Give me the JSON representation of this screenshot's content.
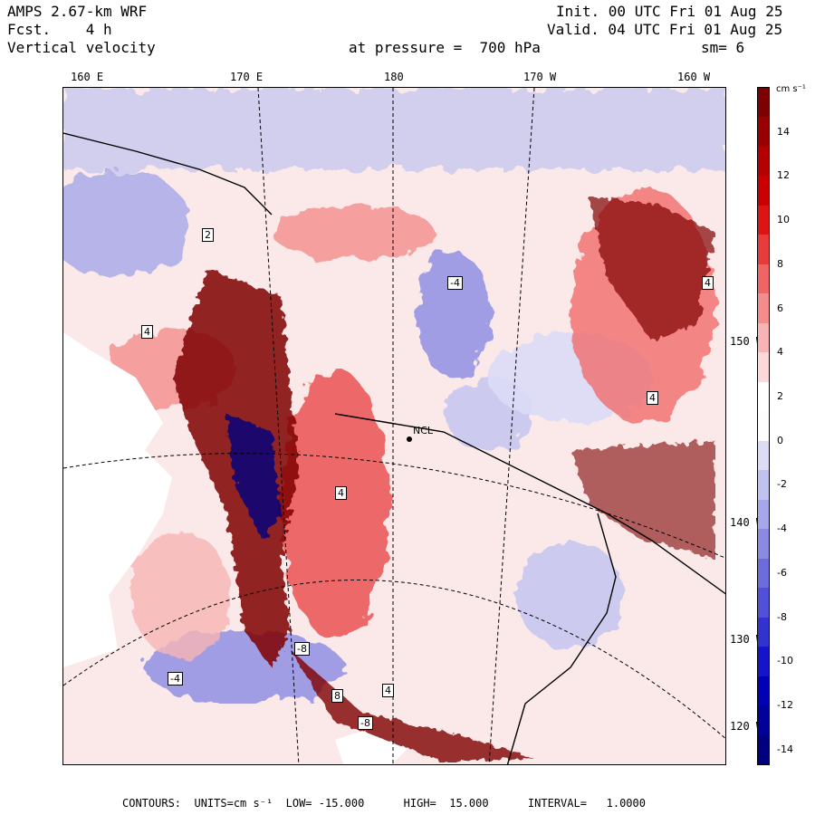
{
  "header": {
    "model": "AMPS 2.67-km WRF",
    "fcst": "Fcst.    4 h",
    "field": "Vertical velocity",
    "init": "Init. 00 UTC Fri 01 Aug 25",
    "valid": "Valid. 04 UTC Fri 01 Aug 25",
    "level": "at pressure =  700 hPa",
    "smooth": "sm= 6"
  },
  "lon_labels": [
    "160 E",
    "170 E",
    "180",
    "170 W",
    "160 W"
  ],
  "lat_labels": [
    "150 W",
    "140 W",
    "130 W",
    "120 W"
  ],
  "colorbar": {
    "units": "cm s⁻¹",
    "labels": [
      "14",
      "12",
      "10",
      "8",
      "6",
      "4",
      "2",
      "0",
      "-2",
      "-4",
      "-6",
      "-8",
      "-10",
      "-12",
      "-14"
    ],
    "colors": [
      "#7f0000",
      "#990000",
      "#b30000",
      "#c80000",
      "#dc1414",
      "#e83c3c",
      "#f06464",
      "#f48c8c",
      "#f8b4b4",
      "#fcd8d8",
      "#ffffff",
      "#fdfdfd",
      "#dcdcf6",
      "#c2c2f0",
      "#a6a6ea",
      "#8a8ae2",
      "#6c6cdc",
      "#5050d8",
      "#3232d0",
      "#1414c8",
      "#0000b4",
      "#00009a",
      "#000080"
    ]
  },
  "station": "NCL",
  "contour_labels": [
    "4",
    "4",
    "-4",
    "2",
    "4",
    "-8",
    "8",
    "-4",
    "4",
    "-8",
    "4"
  ],
  "footer": "CONTOURS:  UNITS=cm s⁻¹  LOW= -15.000      HIGH=  15.000      INTERVAL=   1.0000"
}
